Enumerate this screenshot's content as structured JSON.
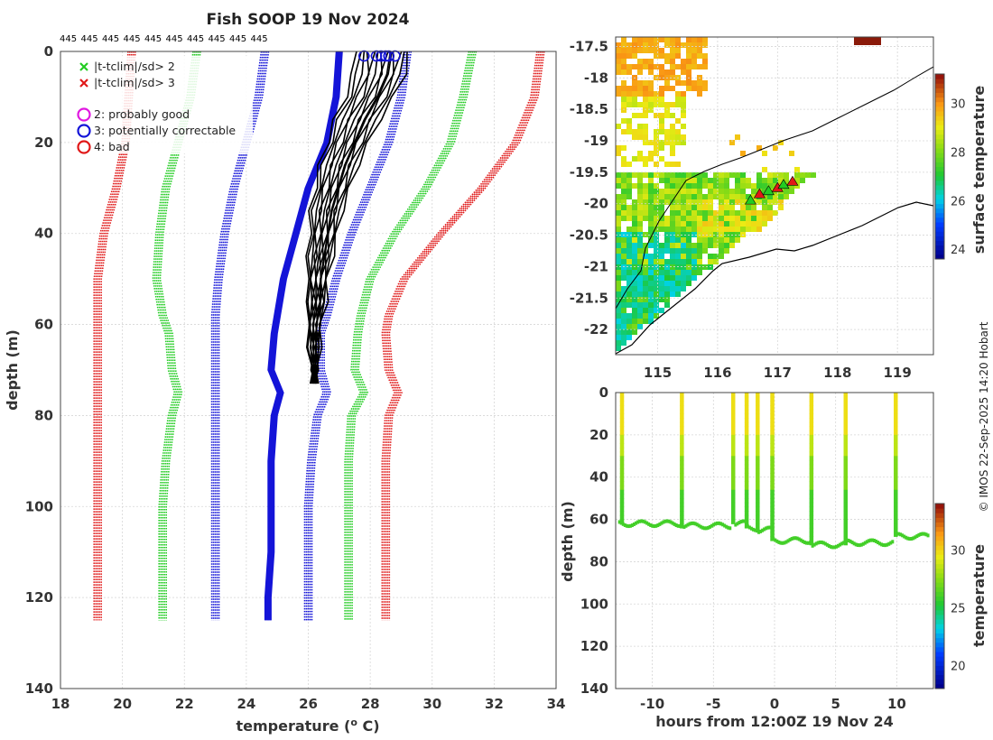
{
  "header": {
    "title": "Fish SOOP 19 Nov 2024",
    "probe_ids": [
      "445",
      "445",
      "445",
      "445",
      "445",
      "445",
      "445",
      "445",
      "445",
      "445"
    ]
  },
  "credit": "© IMOS 22-Sep-2025 14:20 Hobart",
  "legend": {
    "cross_items": [
      {
        "label": "|t-tclim|/sd> 2",
        "color": "#22cc22"
      },
      {
        "label": "|t-tclim|/sd> 3",
        "color": "#e01818"
      }
    ],
    "flag_items": [
      {
        "label": "2: probably good",
        "color": "#e018e0"
      },
      {
        "label": "3: potentially correctable",
        "color": "#1414d8"
      },
      {
        "label": "4: bad",
        "color": "#e01818"
      }
    ]
  },
  "chart_data": [
    {
      "id": "profiles",
      "type": "line",
      "title": "Fish SOOP 19 Nov 2024",
      "xlabel": "temperature (",
      "xlabel_sup": "o",
      "xlabel_tail": " C)",
      "ylabel": "depth (m)",
      "xlim": [
        18,
        34
      ],
      "ylim": [
        140,
        0
      ],
      "xticks": [
        "18",
        "20",
        "22",
        "24",
        "26",
        "28",
        "30",
        "32",
        "34"
      ],
      "yticks": [
        "0",
        "20",
        "40",
        "60",
        "80",
        "100",
        "120",
        "140"
      ],
      "series": [
        {
          "name": "climatology -3sd",
          "color": "#e01818",
          "style": "dotted",
          "depth": [
            0,
            10,
            20,
            30,
            40,
            50,
            58,
            62,
            70,
            75,
            80,
            90,
            100,
            110,
            120,
            125
          ],
          "values": [
            20.3,
            20.2,
            20.1,
            19.8,
            19.4,
            19.2,
            19.2,
            19.2,
            19.2,
            19.2,
            19.2,
            19.2,
            19.2,
            19.2,
            19.2,
            19.2
          ]
        },
        {
          "name": "climatology -2sd",
          "color": "#22cc22",
          "style": "dotted",
          "depth": [
            0,
            10,
            20,
            30,
            40,
            50,
            58,
            62,
            70,
            75,
            80,
            90,
            100,
            110,
            120,
            125
          ],
          "values": [
            22.4,
            22.2,
            21.8,
            21.4,
            21.2,
            21.1,
            21.3,
            21.5,
            21.6,
            21.8,
            21.6,
            21.4,
            21.3,
            21.3,
            21.3,
            21.3
          ]
        },
        {
          "name": "climatology -1sd",
          "color": "#1414d8",
          "style": "dotted",
          "depth": [
            0,
            10,
            20,
            30,
            40,
            50,
            58,
            62,
            70,
            75,
            80,
            90,
            100,
            110,
            120,
            125
          ],
          "values": [
            24.6,
            24.4,
            24.0,
            23.6,
            23.3,
            23.1,
            23.0,
            23.0,
            23.0,
            23.0,
            23.0,
            23.0,
            23.0,
            23.0,
            23.0,
            23.0
          ]
        },
        {
          "name": "climatology mean",
          "color": "#1414d8",
          "style": "solid",
          "depth": [
            0,
            10,
            20,
            30,
            40,
            50,
            58,
            62,
            70,
            75,
            80,
            90,
            100,
            110,
            120,
            125
          ],
          "values": [
            27.0,
            26.9,
            26.6,
            26.0,
            25.6,
            25.2,
            25.0,
            24.9,
            24.8,
            25.1,
            24.9,
            24.8,
            24.8,
            24.8,
            24.7,
            24.7
          ]
        },
        {
          "name": "climatology +1sd",
          "color": "#1414d8",
          "style": "dotted",
          "depth": [
            0,
            10,
            20,
            30,
            40,
            50,
            58,
            62,
            70,
            75,
            80,
            90,
            100,
            110,
            120,
            125
          ],
          "values": [
            29.2,
            29.0,
            28.6,
            28.0,
            27.4,
            26.9,
            26.6,
            26.4,
            26.4,
            26.6,
            26.3,
            26.1,
            26.0,
            26.0,
            26.0,
            26.0
          ]
        },
        {
          "name": "climatology +2sd",
          "color": "#22cc22",
          "style": "dotted",
          "depth": [
            0,
            10,
            20,
            30,
            40,
            50,
            58,
            62,
            70,
            75,
            80,
            90,
            100,
            110,
            120,
            125
          ],
          "values": [
            31.3,
            31.0,
            30.6,
            29.8,
            28.8,
            28.0,
            27.7,
            27.6,
            27.5,
            27.8,
            27.4,
            27.3,
            27.3,
            27.3,
            27.3,
            27.3
          ]
        },
        {
          "name": "climatology +3sd",
          "color": "#e01818",
          "style": "dotted",
          "depth": [
            0,
            10,
            20,
            30,
            40,
            50,
            58,
            62,
            70,
            75,
            80,
            90,
            100,
            110,
            120,
            125
          ],
          "values": [
            33.5,
            33.3,
            32.7,
            31.6,
            30.3,
            29.1,
            28.6,
            28.5,
            28.6,
            28.9,
            28.6,
            28.5,
            28.5,
            28.5,
            28.5,
            28.5
          ]
        },
        {
          "name": "observed profiles",
          "color": "#000000",
          "style": "solid",
          "depth": [
            0,
            5,
            10,
            15,
            20,
            25,
            30,
            35,
            40,
            45,
            50,
            55,
            60,
            65,
            70,
            73
          ],
          "values": [
            28.4,
            28.3,
            28.0,
            27.6,
            27.3,
            27.0,
            26.8,
            26.6,
            26.5,
            26.4,
            26.3,
            26.3,
            26.2,
            26.2,
            26.2,
            26.2
          ]
        }
      ],
      "surface_flags": [
        27.8,
        28.2,
        28.35,
        28.5,
        28.6,
        28.8
      ]
    },
    {
      "id": "sst_map",
      "type": "heatmap",
      "xlim": [
        114.3,
        119.6
      ],
      "ylim": [
        -22.4,
        -17.35
      ],
      "xticks": [
        "115",
        "116",
        "117",
        "118",
        "119"
      ],
      "yticks": [
        "-17.5",
        "-18",
        "-18.5",
        "-19",
        "-19.5",
        "-20",
        "-20.5",
        "-21",
        "-21.5",
        "-22"
      ],
      "colorbar_label": "surface temperature",
      "colorbar_ticks": [
        "24",
        "26",
        "28",
        "30"
      ],
      "colorbar_range": [
        23.6,
        31.2
      ],
      "track": [
        [
          116.55,
          -19.95
        ],
        [
          116.7,
          -19.85
        ],
        [
          116.85,
          -19.8
        ],
        [
          117.0,
          -19.75
        ],
        [
          117.1,
          -19.7
        ],
        [
          117.25,
          -19.65
        ]
      ]
    },
    {
      "id": "section",
      "type": "heatmap",
      "xlabel": "hours from 12:00Z 19 Nov 24",
      "ylabel": "depth (m)",
      "xlim": [
        -13,
        13
      ],
      "ylim": [
        140,
        0
      ],
      "xticks": [
        "-10",
        "-5",
        "0",
        "5",
        "10"
      ],
      "yticks": [
        "0",
        "20",
        "40",
        "60",
        "80",
        "100",
        "120",
        "140"
      ],
      "colorbar_label": "temperature",
      "colorbar_ticks": [
        "20",
        "25",
        "30"
      ],
      "colorbar_range": [
        18,
        34
      ],
      "casts": [
        {
          "hour": -12.5,
          "start": -12.8,
          "end": -7.7,
          "bottom": 62
        },
        {
          "hour": -7.6,
          "start": -7.5,
          "end": -3.6,
          "bottom": 63
        },
        {
          "hour": -3.4,
          "start": -3.3,
          "end": -2.4,
          "bottom": 62
        },
        {
          "hour": -2.3,
          "start": -2.3,
          "end": -1.6,
          "bottom": 64
        },
        {
          "hour": -1.4,
          "start": -1.4,
          "end": -0.4,
          "bottom": 65
        },
        {
          "hour": -0.2,
          "start": -0.2,
          "end": 2.9,
          "bottom": 70
        },
        {
          "hour": 3.0,
          "start": 3.0,
          "end": 5.7,
          "bottom": 72
        },
        {
          "hour": 5.8,
          "start": 5.8,
          "end": 9.7,
          "bottom": 71
        },
        {
          "hour": 9.9,
          "start": 9.9,
          "end": 12.6,
          "bottom": 68
        }
      ]
    }
  ]
}
